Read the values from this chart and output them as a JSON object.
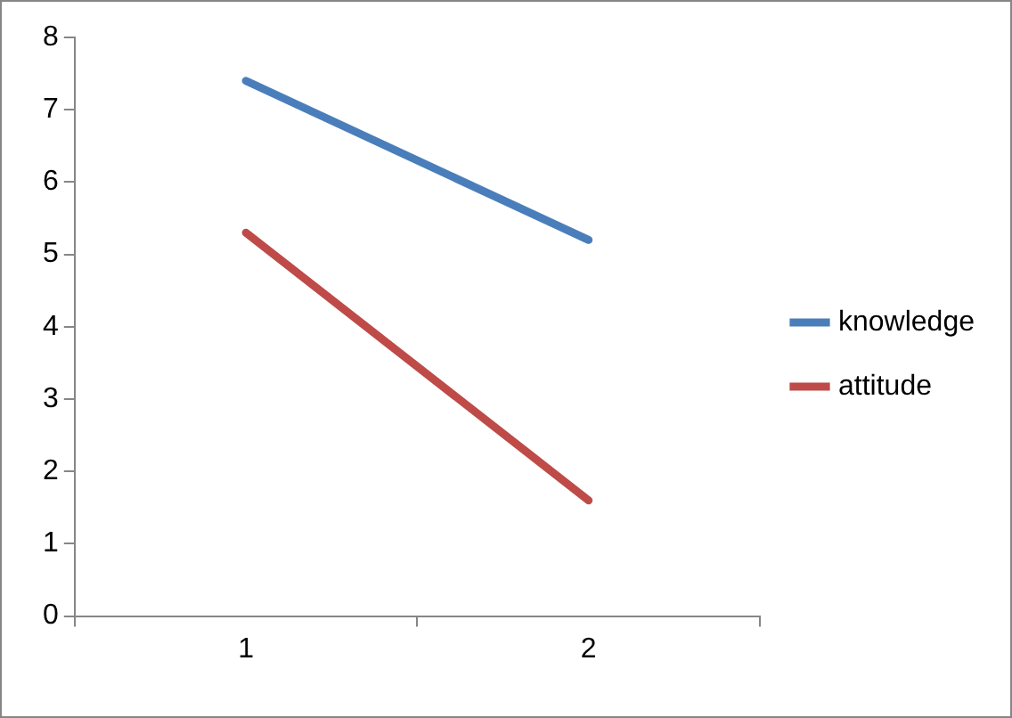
{
  "chart_data": {
    "type": "line",
    "categories": [
      "1",
      "2"
    ],
    "series": [
      {
        "name": "knowledge",
        "color": "#4a7ebb",
        "values": [
          7.4,
          5.2
        ]
      },
      {
        "name": "attitude",
        "color": "#be4b48",
        "values": [
          5.3,
          1.6
        ]
      }
    ],
    "ylim": [
      0,
      8
    ],
    "yticks": [
      0,
      1,
      2,
      3,
      4,
      5,
      6,
      7,
      8
    ],
    "grid": false,
    "legend": "right",
    "marker": "none",
    "line_style": "solid"
  }
}
